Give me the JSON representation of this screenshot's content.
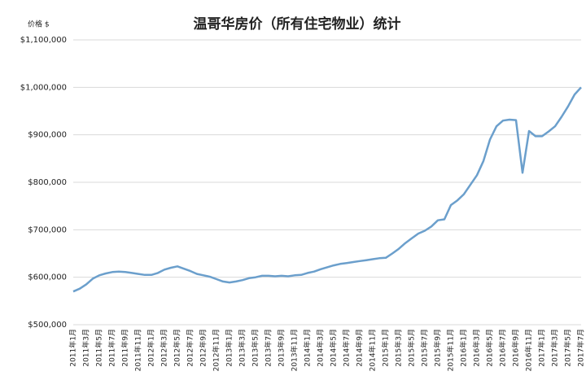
{
  "chart_data": {
    "type": "line",
    "title": "温哥华房价（所有住宅物业）统计",
    "y_label": "价格 $",
    "categories": [
      "2011年1月",
      null,
      "2011年3月",
      null,
      "2011年5月",
      null,
      "2011年7月",
      null,
      "2011年9月",
      null,
      "2011年11月",
      null,
      "2012年1月",
      null,
      "2012年3月",
      null,
      "2012年5月",
      null,
      "2012年7月",
      null,
      "2012年9月",
      null,
      "2012年11月",
      null,
      "2013年1月",
      null,
      "2013年3月",
      null,
      "2013年5月",
      null,
      "2013年7月",
      null,
      "2013年9月",
      null,
      "2013年11月",
      null,
      "2014年1月",
      null,
      "2014年3月",
      null,
      "2014年5月",
      null,
      "2014年7月",
      null,
      "2014年9月",
      null,
      "2014年11月",
      null,
      "2015年1月",
      null,
      "2015年3月",
      null,
      "2015年5月",
      null,
      "2015年7月",
      null,
      "2015年9月",
      null,
      "2015年11月",
      null,
      "2016年1月",
      null,
      "2016年3月",
      null,
      "2016年5月",
      null,
      "2016年7月",
      null,
      "2016年9月",
      null,
      "2016年11月",
      null,
      "2017年1月",
      null,
      "2017年3月",
      null,
      "2017年5月",
      null,
      "2017年7月"
    ],
    "values": [
      570000,
      576000,
      585000,
      597000,
      604000,
      608000,
      611000,
      612000,
      611000,
      609000,
      607000,
      605000,
      605000,
      609000,
      616000,
      620000,
      623000,
      618000,
      613000,
      607000,
      604000,
      601000,
      596000,
      591000,
      589000,
      591000,
      594000,
      598000,
      600000,
      603000,
      603000,
      602000,
      603000,
      602000,
      604000,
      605000,
      609000,
      612000,
      617000,
      621000,
      625000,
      628000,
      630000,
      632000,
      634000,
      636000,
      638000,
      640000,
      641000,
      650000,
      660000,
      672000,
      682000,
      692000,
      698000,
      707000,
      720000,
      722000,
      752000,
      762000,
      775000,
      795000,
      815000,
      845000,
      890000,
      918000,
      930000,
      932000,
      931000,
      820000,
      908000,
      897000,
      897000,
      907000,
      918000,
      938000,
      960000,
      985000,
      1000000
    ],
    "color": "#6b9fcc",
    "ylim": [
      500000,
      1100000
    ],
    "yticks": [
      {
        "value": 500000,
        "label": "$500,000"
      },
      {
        "value": 600000,
        "label": "$600,000"
      },
      {
        "value": 700000,
        "label": "$700,000"
      },
      {
        "value": 800000,
        "label": "$800,000"
      },
      {
        "value": 900000,
        "label": "$900,000"
      },
      {
        "value": 1000000,
        "label": "$1,000,000"
      },
      {
        "value": 1100000,
        "label": "$1,100,000"
      }
    ],
    "grid": true
  }
}
